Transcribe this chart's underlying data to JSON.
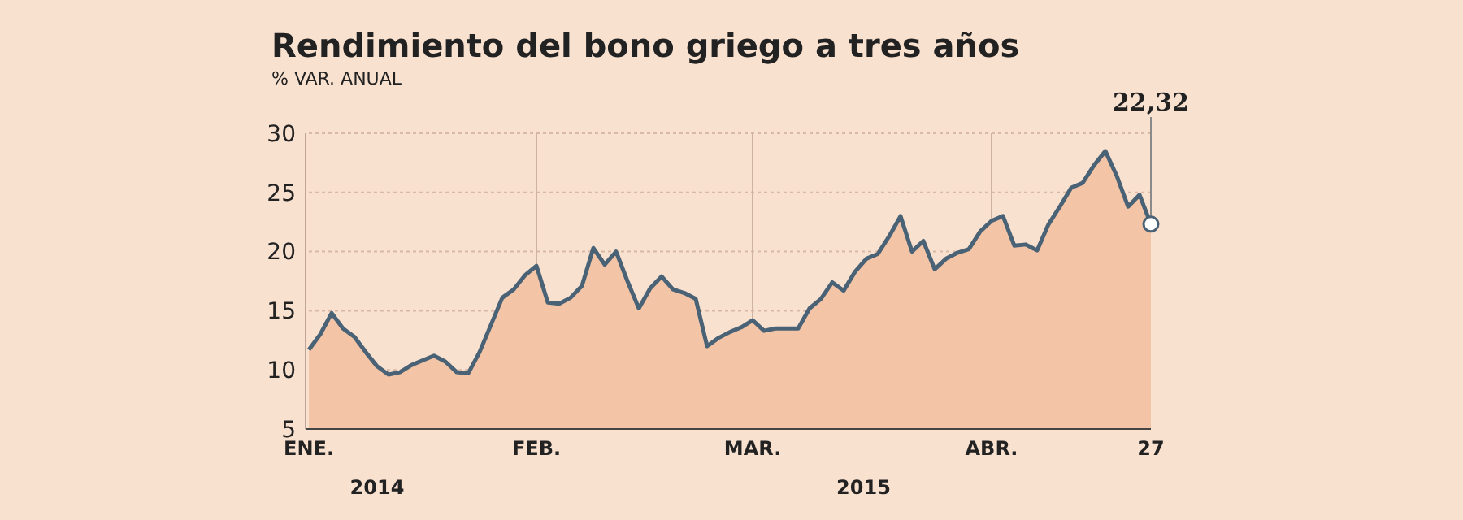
{
  "chart_data": {
    "type": "area",
    "title": "Rendimiento del bono griego a tres años",
    "subtitle": "% VAR. ANUAL",
    "categories": [
      "ENE.",
      null,
      null,
      null,
      null,
      null,
      null,
      null,
      null,
      null,
      null,
      null,
      null,
      null,
      null,
      null,
      null,
      null,
      null,
      null,
      "FEB.",
      null,
      null,
      null,
      null,
      null,
      null,
      null,
      null,
      null,
      null,
      null,
      null,
      null,
      null,
      null,
      null,
      null,
      null,
      "MAR.",
      null,
      null,
      null,
      null,
      null,
      null,
      null,
      null,
      null,
      null,
      null,
      null,
      null,
      null,
      null,
      null,
      null,
      null,
      null,
      null,
      "ABR.",
      null,
      null,
      null,
      null,
      null,
      null,
      null,
      null,
      null,
      null,
      null,
      null,
      null,
      "27"
    ],
    "series": [
      {
        "color": "#f3c4a6",
        "values": [
          11.7,
          13.0,
          14.8,
          13.5,
          12.8,
          11.5,
          10.3,
          9.6,
          9.8,
          10.4,
          10.8,
          11.2,
          10.7,
          9.8,
          9.7,
          11.5,
          13.8,
          16.1,
          16.8,
          18.0,
          18.8,
          15.7,
          15.6,
          16.1,
          17.1,
          20.3,
          18.9,
          20.0,
          17.5,
          15.2,
          16.9,
          17.9,
          16.8,
          16.5,
          16.0,
          12.0,
          12.7,
          13.2,
          13.6,
          14.2,
          13.3,
          13.5,
          13.5,
          13.5,
          15.2,
          16.0,
          17.4,
          16.7,
          18.3,
          19.4,
          19.8,
          21.3,
          23.0,
          20.0,
          20.9,
          18.5,
          19.4,
          19.9,
          20.2,
          21.7,
          22.6,
          23.0,
          20.5,
          20.6,
          20.1,
          22.3,
          23.8,
          25.4,
          25.8,
          27.3,
          28.5,
          26.4,
          23.8,
          24.8,
          22.32
        ]
      },
      {
        "type": "line",
        "color": "#4a6275",
        "values": [
          11.7,
          13.0,
          14.8,
          13.5,
          12.8,
          11.5,
          10.3,
          9.6,
          9.8,
          10.4,
          10.8,
          11.2,
          10.7,
          9.8,
          9.7,
          11.5,
          13.8,
          16.1,
          16.8,
          18.0,
          18.8,
          15.7,
          15.6,
          16.1,
          17.1,
          20.3,
          18.9,
          20.0,
          17.5,
          15.2,
          16.9,
          17.9,
          16.8,
          16.5,
          16.0,
          12.0,
          12.7,
          13.2,
          13.6,
          14.2,
          13.3,
          13.5,
          13.5,
          13.5,
          15.2,
          16.0,
          17.4,
          16.7,
          18.3,
          19.4,
          19.8,
          21.3,
          23.0,
          20.0,
          20.9,
          18.5,
          19.4,
          19.9,
          20.2,
          21.7,
          22.6,
          23.0,
          20.5,
          20.6,
          20.1,
          22.3,
          23.8,
          25.4,
          25.8,
          27.3,
          28.5,
          26.4,
          23.8,
          24.8,
          22.32
        ]
      }
    ],
    "ylim": [
      5,
      30
    ],
    "yticks": [
      5,
      10,
      15,
      20,
      25,
      30
    ],
    "grid": true,
    "annotations": [
      {
        "text": "22,32",
        "x": "27",
        "y": 22.32
      },
      "2014",
      "2015"
    ]
  }
}
